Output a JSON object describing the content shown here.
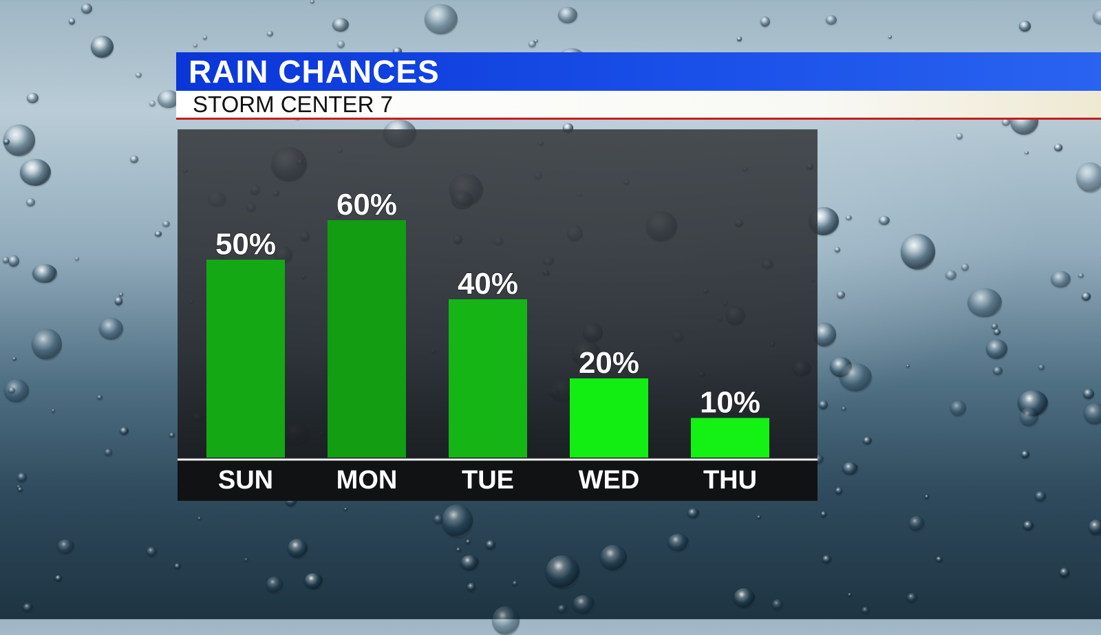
{
  "header": {
    "title": "RAIN CHANCES",
    "subtitle": "STORM CENTER 7"
  },
  "colors": {
    "title_bar": "#1a4fe8",
    "subtitle_rule": "#c81c1c",
    "bar_palette": [
      "#14a914",
      "#129d12",
      "#15b515",
      "#12ee12",
      "#14f214"
    ]
  },
  "chart_data": {
    "type": "bar",
    "title": "RAIN CHANCES",
    "categories": [
      "SUN",
      "MON",
      "TUE",
      "WED",
      "THU"
    ],
    "values": [
      50,
      60,
      40,
      20,
      10
    ],
    "labels": [
      "50%",
      "60%",
      "40%",
      "20%",
      "10%"
    ],
    "ylim": [
      0,
      60
    ],
    "grid": false,
    "legend": "none"
  }
}
